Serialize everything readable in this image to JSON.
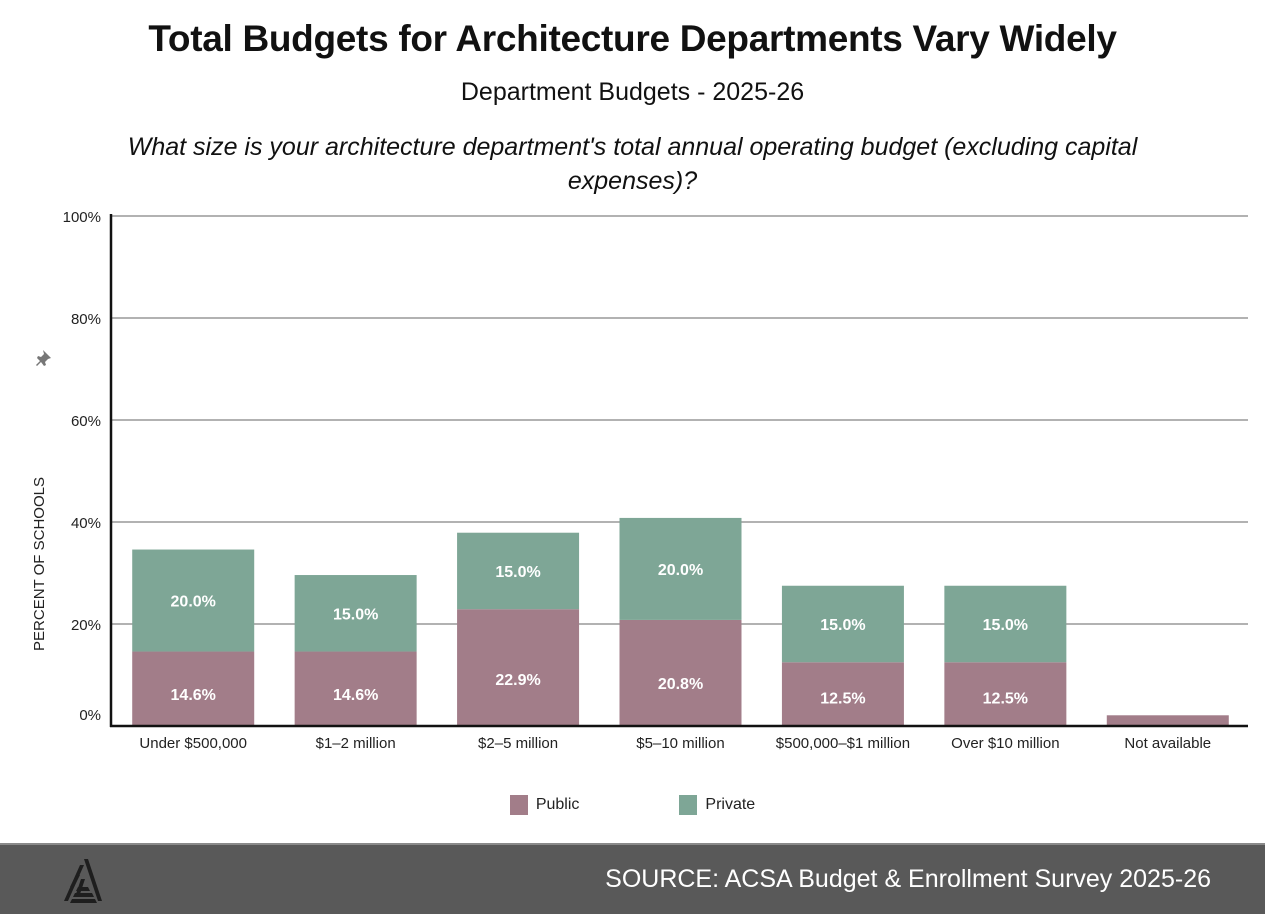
{
  "chart_data": {
    "type": "bar",
    "stacked": true,
    "title": "Total Budgets for Architecture Departments Vary Widely",
    "subtitle": "Department Budgets - 2025-26",
    "question": "What size is your architecture department's total annual operating budget (excluding capital expenses)?",
    "xlabel": "",
    "ylabel": "PERCENT OF SCHOOLS",
    "ylim": [
      0,
      100
    ],
    "yticks": [
      "0%",
      "20%",
      "40%",
      "60%",
      "80%",
      "100%"
    ],
    "ytick_values": [
      0,
      20,
      40,
      60,
      80,
      100
    ],
    "grid": true,
    "legend_position": "bottom",
    "categories": [
      "Under $500,000",
      "$1–2 million",
      "$2–5 million",
      "$5–10 million",
      "$500,000–$1 million",
      "Over $10 million",
      "Not available"
    ],
    "series": [
      {
        "name": "Public",
        "color": "#a27d89",
        "values": [
          14.6,
          14.6,
          22.9,
          20.8,
          12.5,
          12.5,
          2.1
        ],
        "labels": [
          "14.6%",
          "14.6%",
          "22.9%",
          "20.8%",
          "12.5%",
          "12.5%",
          ""
        ]
      },
      {
        "name": "Private",
        "color": "#7ea696",
        "values": [
          20.0,
          15.0,
          15.0,
          20.0,
          15.0,
          15.0,
          0
        ],
        "labels": [
          "20.0%",
          "15.0%",
          "15.0%",
          "20.0%",
          "15.0%",
          "15.0%",
          ""
        ]
      }
    ]
  },
  "legend": [
    {
      "label": "Public",
      "color": "#a27d89"
    },
    {
      "label": "Private",
      "color": "#7ea696"
    }
  ],
  "ylabel_icon": "pin-icon",
  "footer": {
    "source": "SOURCE: ACSA Budget & Enrollment Survey 2025-26",
    "logo": "acsa-logo-icon"
  }
}
